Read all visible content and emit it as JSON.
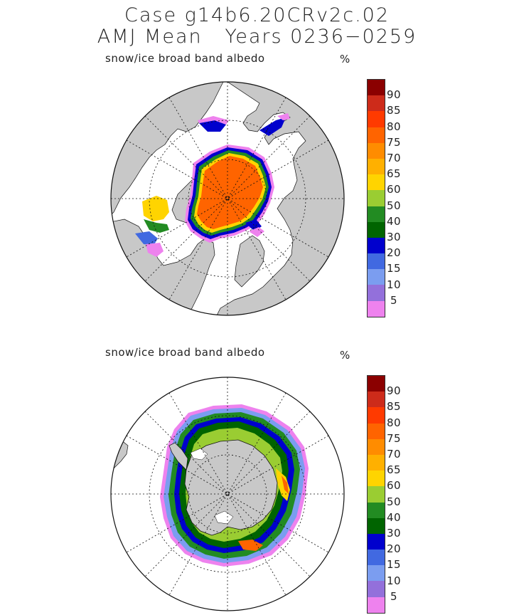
{
  "header": {
    "title_line1": "Case g14b6.20CRv2c.02",
    "title_line2": "AMJ Mean   Years 0236−0259"
  },
  "panels": [
    {
      "name": "north",
      "label": "snow/ice broad band albedo",
      "unit": "%",
      "legend_labels": [
        "90",
        "85",
        "80",
        "75",
        "70",
        "65",
        "60",
        "50",
        "40",
        "30",
        "20",
        "15",
        "10",
        "5"
      ]
    },
    {
      "name": "south",
      "label": "snow/ice broad band albedo",
      "unit": "%",
      "legend_labels": [
        "90",
        "85",
        "80",
        "75",
        "70",
        "65",
        "60",
        "50",
        "40",
        "30",
        "20",
        "15",
        "10",
        "5"
      ]
    }
  ],
  "legend_colors": [
    "#8b0000",
    "#cd2b1a",
    "#ff3a00",
    "#ff6400",
    "#ff8c00",
    "#ffb000",
    "#ffd400",
    "#9acd32",
    "#228b22",
    "#006400",
    "#0000cd",
    "#4169e1",
    "#7b9df0",
    "#9370db",
    "#ee82ee"
  ]
}
